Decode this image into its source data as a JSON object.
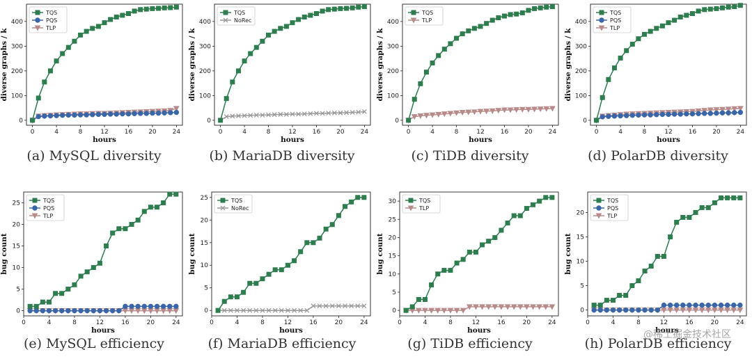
{
  "colors": {
    "TQS": "#2e7d4f",
    "PQS": "#3a66a8",
    "TLP": "#b98a8a",
    "NoRec": "#999999"
  },
  "watermark": "@稀土掘金技术社区",
  "chart_data": [
    {
      "type": "line",
      "caption": "(a) MySQL diversity",
      "xlabel": "hours",
      "ylabel": "diverse graphs / k",
      "xlim": [
        -1,
        25
      ],
      "ylim": [
        -20,
        470
      ],
      "xticks": [
        0,
        4,
        8,
        12,
        16,
        20,
        24
      ],
      "yticks": [
        0,
        100,
        200,
        300,
        400
      ],
      "x": [
        0,
        1,
        2,
        3,
        4,
        5,
        6,
        7,
        8,
        9,
        10,
        11,
        12,
        13,
        14,
        15,
        16,
        17,
        18,
        19,
        20,
        21,
        22,
        23,
        24
      ],
      "series": [
        {
          "name": "TQS",
          "marker": "square",
          "values": [
            0,
            90,
            155,
            200,
            240,
            270,
            295,
            320,
            345,
            360,
            372,
            380,
            395,
            408,
            418,
            425,
            432,
            442,
            448,
            450,
            452,
            453,
            455,
            456,
            458
          ]
        },
        {
          "name": "PQS",
          "marker": "circle",
          "values": [
            0,
            15,
            17,
            18,
            19,
            20,
            21,
            21,
            22,
            22,
            23,
            24,
            24,
            25,
            25,
            26,
            26,
            27,
            28,
            28,
            29,
            29,
            30,
            31,
            32
          ]
        },
        {
          "name": "TLP",
          "marker": "triangle",
          "values": [
            0,
            17,
            19,
            20,
            22,
            23,
            24,
            25,
            26,
            26,
            27,
            28,
            28,
            29,
            30,
            31,
            32,
            33,
            34,
            35,
            36,
            37,
            38,
            40,
            48
          ]
        }
      ]
    },
    {
      "type": "line",
      "caption": "(b) MariaDB diversity",
      "xlabel": "hours",
      "ylabel": "diverse graphs / k",
      "xlim": [
        -1,
        25
      ],
      "ylim": [
        -20,
        470
      ],
      "xticks": [
        0,
        4,
        8,
        12,
        16,
        20,
        24
      ],
      "yticks": [
        0,
        100,
        200,
        300,
        400
      ],
      "x": [
        0,
        1,
        2,
        3,
        4,
        5,
        6,
        7,
        8,
        9,
        10,
        11,
        12,
        13,
        14,
        15,
        16,
        17,
        18,
        19,
        20,
        21,
        22,
        23,
        24
      ],
      "series": [
        {
          "name": "TQS",
          "marker": "square",
          "values": [
            0,
            88,
            155,
            200,
            240,
            270,
            295,
            320,
            345,
            360,
            372,
            380,
            395,
            408,
            418,
            425,
            432,
            442,
            448,
            450,
            452,
            453,
            455,
            458,
            460
          ]
        },
        {
          "name": "NoRec",
          "marker": "x",
          "values": [
            0,
            15,
            17,
            18,
            19,
            20,
            21,
            21,
            22,
            23,
            24,
            24,
            25,
            25,
            26,
            27,
            28,
            28,
            29,
            30,
            30,
            31,
            32,
            33,
            35
          ]
        }
      ]
    },
    {
      "type": "line",
      "caption": "(c) TiDB diversity",
      "xlabel": "hours",
      "ylabel": "diverse graphs / k",
      "xlim": [
        -1,
        25
      ],
      "ylim": [
        -20,
        470
      ],
      "xticks": [
        0,
        4,
        8,
        12,
        16,
        20,
        24
      ],
      "yticks": [
        0,
        100,
        200,
        300,
        400
      ],
      "x": [
        0,
        1,
        2,
        3,
        4,
        5,
        6,
        7,
        8,
        9,
        10,
        11,
        12,
        13,
        14,
        15,
        16,
        17,
        18,
        19,
        20,
        21,
        22,
        23,
        24
      ],
      "series": [
        {
          "name": "TQS",
          "marker": "square",
          "values": [
            0,
            85,
            148,
            195,
            232,
            262,
            288,
            310,
            332,
            350,
            362,
            372,
            380,
            392,
            405,
            415,
            422,
            428,
            430,
            435,
            445,
            452,
            455,
            458,
            460
          ]
        },
        {
          "name": "TLP",
          "marker": "triangle",
          "values": [
            0,
            15,
            18,
            20,
            22,
            24,
            26,
            28,
            30,
            32,
            33,
            34,
            36,
            37,
            38,
            40,
            42,
            42,
            43,
            44,
            44,
            45,
            46,
            47,
            48
          ]
        }
      ]
    },
    {
      "type": "line",
      "caption": "(d) PolarDB diversity",
      "xlabel": "hours",
      "ylabel": "diverse graphs / k",
      "xlim": [
        -1,
        25
      ],
      "ylim": [
        -20,
        470
      ],
      "xticks": [
        0,
        4,
        8,
        12,
        16,
        20,
        24
      ],
      "yticks": [
        0,
        100,
        200,
        300,
        400
      ],
      "x": [
        0,
        1,
        2,
        3,
        4,
        5,
        6,
        7,
        8,
        9,
        10,
        11,
        12,
        13,
        14,
        15,
        16,
        17,
        18,
        19,
        20,
        21,
        22,
        23,
        24
      ],
      "series": [
        {
          "name": "TQS",
          "marker": "square",
          "values": [
            0,
            92,
            165,
            212,
            252,
            282,
            308,
            330,
            348,
            360,
            372,
            382,
            395,
            405,
            418,
            425,
            432,
            442,
            448,
            450,
            452,
            455,
            458,
            460,
            465
          ]
        },
        {
          "name": "PQS",
          "marker": "circle",
          "values": [
            0,
            14,
            16,
            17,
            18,
            19,
            20,
            21,
            22,
            22,
            23,
            24,
            24,
            25,
            25,
            26,
            26,
            27,
            28,
            28,
            29,
            30,
            30,
            31,
            32
          ]
        },
        {
          "name": "TLP",
          "marker": "triangle",
          "values": [
            0,
            17,
            19,
            21,
            23,
            25,
            26,
            27,
            28,
            29,
            30,
            31,
            32,
            33,
            34,
            35,
            36,
            38,
            40,
            42,
            43,
            44,
            45,
            47,
            48
          ]
        }
      ]
    },
    {
      "type": "line",
      "caption": "(e) MySQL efficiency",
      "xlabel": "hours",
      "ylabel": "bug count",
      "xlim": [
        0,
        25
      ],
      "ylim": [
        -1.2,
        27.5
      ],
      "xticks": [
        0,
        4,
        8,
        12,
        16,
        20,
        24
      ],
      "yticks": [
        0,
        5,
        10,
        15,
        20,
        25
      ],
      "x": [
        1,
        2,
        3,
        4,
        5,
        6,
        7,
        8,
        9,
        10,
        11,
        12,
        13,
        14,
        15,
        16,
        17,
        18,
        19,
        20,
        21,
        22,
        23,
        24
      ],
      "series": [
        {
          "name": "TQS",
          "marker": "square",
          "values": [
            1,
            1,
            2,
            2,
            4,
            4,
            5,
            6,
            8,
            9,
            10,
            11,
            15,
            18,
            19,
            19,
            20,
            21,
            23,
            24,
            24,
            25,
            27,
            27
          ]
        },
        {
          "name": "PQS",
          "marker": "circle",
          "values": [
            0,
            0,
            0,
            0,
            0,
            0,
            0,
            0,
            0,
            0,
            0,
            0,
            0,
            0,
            0,
            1,
            1,
            1,
            1,
            1,
            1,
            1,
            1,
            1
          ]
        },
        {
          "name": "TLP",
          "marker": "triangle",
          "values": [
            0,
            0,
            0,
            0,
            0,
            0,
            0,
            0,
            0,
            0,
            0,
            0,
            0,
            0,
            0,
            0,
            0,
            0,
            0,
            0,
            0,
            0,
            0,
            0
          ]
        }
      ]
    },
    {
      "type": "line",
      "caption": "(f) MariaDB efficiency",
      "xlabel": "hours",
      "ylabel": "bug count",
      "xlim": [
        0,
        25
      ],
      "ylim": [
        -1.2,
        26.2
      ],
      "xticks": [
        0,
        4,
        8,
        12,
        16,
        20,
        24
      ],
      "yticks": [
        0,
        5,
        10,
        15,
        20,
        25
      ],
      "x": [
        1,
        2,
        3,
        4,
        5,
        6,
        7,
        8,
        9,
        10,
        11,
        12,
        13,
        14,
        15,
        16,
        17,
        18,
        19,
        20,
        21,
        22,
        23,
        24
      ],
      "series": [
        {
          "name": "TQS",
          "marker": "square",
          "values": [
            0,
            2,
            3,
            3,
            4,
            6,
            6,
            7,
            8,
            9,
            9,
            10,
            11,
            13,
            15,
            15,
            16,
            18,
            19,
            21,
            23,
            24,
            25,
            25
          ]
        },
        {
          "name": "NoRec",
          "marker": "x",
          "values": [
            0,
            0,
            0,
            0,
            0,
            0,
            0,
            0,
            0,
            0,
            0,
            0,
            0,
            0,
            0,
            1,
            1,
            1,
            1,
            1,
            1,
            1,
            1,
            1
          ]
        }
      ]
    },
    {
      "type": "line",
      "caption": "(g) TiDB efficiency",
      "xlabel": "hours",
      "ylabel": "bug count",
      "xlim": [
        0,
        25
      ],
      "ylim": [
        -1.5,
        32.5
      ],
      "xticks": [
        0,
        4,
        8,
        12,
        16,
        20,
        24
      ],
      "yticks": [
        0,
        5,
        10,
        15,
        20,
        25,
        30
      ],
      "x": [
        1,
        2,
        3,
        4,
        5,
        6,
        7,
        8,
        9,
        10,
        11,
        12,
        13,
        14,
        15,
        16,
        17,
        18,
        19,
        20,
        21,
        22,
        23,
        24
      ],
      "series": [
        {
          "name": "TQS",
          "marker": "square",
          "values": [
            0,
            1,
            3,
            3,
            7,
            10,
            11,
            11,
            13,
            14,
            16,
            16,
            18,
            19,
            20,
            22,
            24,
            26,
            26,
            28,
            29,
            30,
            31,
            31
          ]
        },
        {
          "name": "TLP",
          "marker": "triangle",
          "values": [
            0,
            0,
            0,
            0,
            0,
            0,
            0,
            0,
            0,
            0,
            1,
            1,
            1,
            1,
            1,
            1,
            1,
            1,
            1,
            1,
            1,
            1,
            1,
            1
          ]
        }
      ]
    },
    {
      "type": "line",
      "caption": "(h) PolarDB efficiency",
      "xlabel": "hours",
      "ylabel": "bug count",
      "xlim": [
        0,
        25
      ],
      "ylim": [
        -1.2,
        24.2
      ],
      "xticks": [
        0,
        4,
        8,
        12,
        16,
        20,
        24
      ],
      "yticks": [
        0,
        5,
        10,
        15,
        20
      ],
      "x": [
        1,
        2,
        3,
        4,
        5,
        6,
        7,
        8,
        9,
        10,
        11,
        12,
        13,
        14,
        15,
        16,
        17,
        18,
        19,
        20,
        21,
        22,
        23,
        24
      ],
      "series": [
        {
          "name": "TQS",
          "marker": "square",
          "values": [
            1,
            1,
            2,
            2,
            3,
            3,
            5,
            6,
            8,
            9,
            11,
            11,
            15,
            18,
            19,
            19,
            20,
            21,
            21,
            22,
            23,
            23,
            23,
            23
          ]
        },
        {
          "name": "PQS",
          "marker": "circle",
          "values": [
            0,
            0,
            0,
            0,
            0,
            0,
            0,
            0,
            0,
            0,
            0,
            1,
            1,
            1,
            1,
            1,
            1,
            1,
            1,
            1,
            1,
            1,
            1,
            1
          ]
        },
        {
          "name": "TLP",
          "marker": "triangle",
          "values": [
            0,
            0,
            0,
            0,
            0,
            0,
            0,
            0,
            0,
            0,
            0,
            0,
            0,
            0,
            0,
            0,
            0,
            0,
            0,
            0,
            0,
            0,
            0,
            0
          ]
        }
      ]
    }
  ]
}
